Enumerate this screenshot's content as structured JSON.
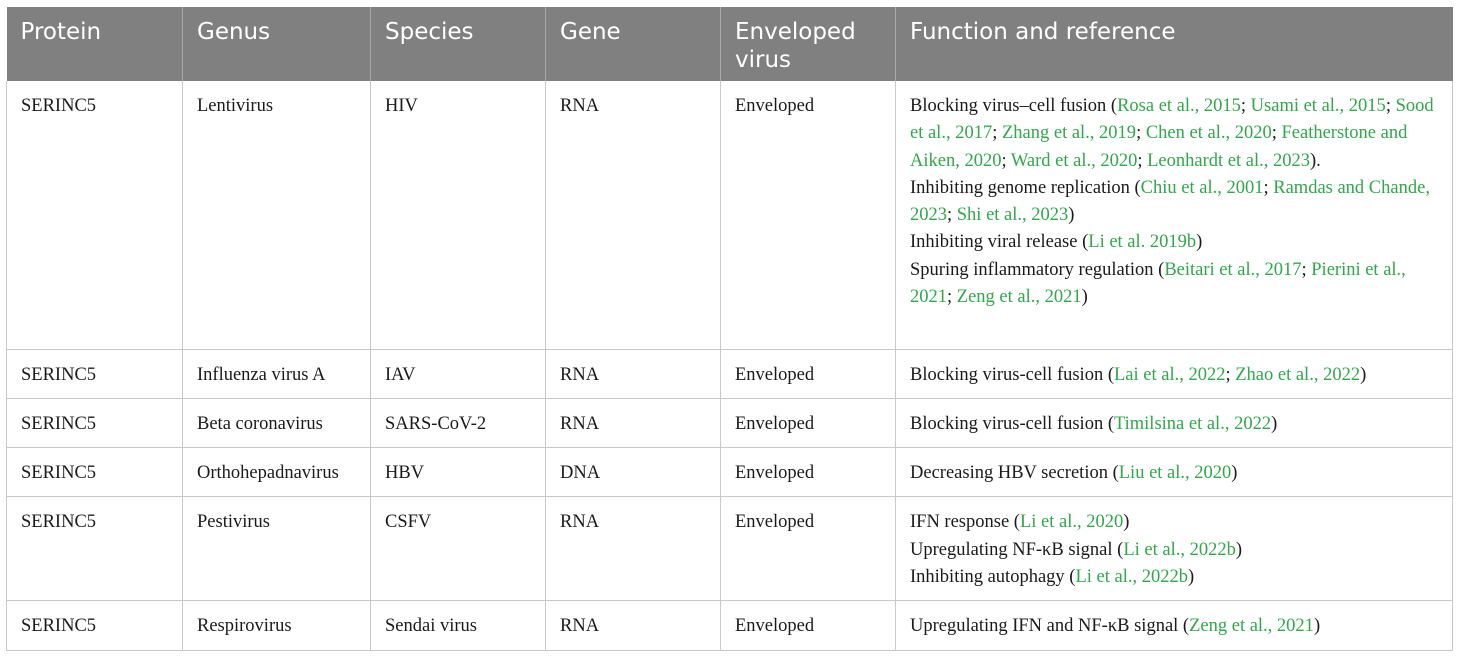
{
  "headers": [
    "Protein",
    "Genus",
    "Species",
    "Gene",
    "Enveloped virus",
    "Function and reference"
  ],
  "rows": [
    {
      "protein": "SERINC5",
      "genus": "Lentivirus",
      "species": "HIV",
      "gene": "RNA",
      "enveloped": "Enveloped",
      "function": [
        [
          {
            "t": "Blocking virus–cell fusion ("
          },
          {
            "t": "Rosa et al., 2015",
            "ref": true
          },
          {
            "t": "; "
          },
          {
            "t": "Usami et al., 2015",
            "ref": true
          },
          {
            "t": "; "
          },
          {
            "t": "Sood et al., 2017",
            "ref": true
          },
          {
            "t": "; "
          },
          {
            "t": "Zhang et al., 2019",
            "ref": true
          },
          {
            "t": "; "
          },
          {
            "t": "Chen et al., 2020",
            "ref": true
          },
          {
            "t": "; "
          },
          {
            "t": "Featherstone and Aiken, 2020",
            "ref": true
          },
          {
            "t": "; "
          },
          {
            "t": "Ward et al., 2020",
            "ref": true
          },
          {
            "t": "; "
          },
          {
            "t": "Leonhardt et al., 2023",
            "ref": true
          },
          {
            "t": ")."
          }
        ],
        [
          {
            "t": "Inhibiting genome replication ("
          },
          {
            "t": "Chiu et al., 2001",
            "ref": true
          },
          {
            "t": "; "
          },
          {
            "t": "Ramdas and Chande, 2023",
            "ref": true
          },
          {
            "t": "; "
          },
          {
            "t": "Shi et al., 2023",
            "ref": true
          },
          {
            "t": ")"
          }
        ],
        [
          {
            "t": "Inhibiting viral release ("
          },
          {
            "t": "Li et al. 2019b",
            "ref": true
          },
          {
            "t": ")"
          }
        ],
        [
          {
            "t": "Spuring inflammatory regulation ("
          },
          {
            "t": "Beitari et al., 2017",
            "ref": true
          },
          {
            "t": "; "
          },
          {
            "t": "Pierini et al., 2021",
            "ref": true
          },
          {
            "t": "; "
          },
          {
            "t": "Zeng et al., 2021",
            "ref": true
          },
          {
            "t": ")"
          }
        ]
      ]
    },
    {
      "protein": "SERINC5",
      "genus": "Influenza virus A",
      "species": "IAV",
      "gene": "RNA",
      "enveloped": "Enveloped",
      "function": [
        [
          {
            "t": "Blocking virus-cell fusion ("
          },
          {
            "t": "Lai et al., 2022",
            "ref": true
          },
          {
            "t": "; "
          },
          {
            "t": "Zhao et al., 2022",
            "ref": true
          },
          {
            "t": ")"
          }
        ]
      ]
    },
    {
      "protein": "SERINC5",
      "genus": "Beta coronavirus",
      "species": "SARS-CoV-2",
      "gene": "RNA",
      "enveloped": "Enveloped",
      "function": [
        [
          {
            "t": "Blocking virus-cell fusion ("
          },
          {
            "t": "Timilsina et al., 2022",
            "ref": true
          },
          {
            "t": ")"
          }
        ]
      ]
    },
    {
      "protein": "SERINC5",
      "genus": "Orthohepadnavirus",
      "species": "HBV",
      "gene": "DNA",
      "enveloped": "Enveloped",
      "function": [
        [
          {
            "t": "Decreasing HBV secretion ("
          },
          {
            "t": "Liu et al., 2020",
            "ref": true
          },
          {
            "t": ")"
          }
        ]
      ]
    },
    {
      "protein": "SERINC5",
      "genus": "Pestivirus",
      "species": "CSFV",
      "gene": "RNA",
      "enveloped": "Enveloped",
      "function": [
        [
          {
            "t": "IFN response ("
          },
          {
            "t": "Li et al., 2020",
            "ref": true
          },
          {
            "t": ")"
          }
        ],
        [
          {
            "t": "Upregulating NF-κB signal ("
          },
          {
            "t": "Li et al., 2022b",
            "ref": true
          },
          {
            "t": ")"
          }
        ],
        [
          {
            "t": "Inhibiting autophagy ("
          },
          {
            "t": "Li et al., 2022b",
            "ref": true
          },
          {
            "t": ")"
          }
        ]
      ]
    },
    {
      "protein": "SERINC5",
      "genus": "Respirovirus",
      "species": "Sendai virus",
      "gene": "RNA",
      "enveloped": "Enveloped",
      "function": [
        [
          {
            "t": "Upregulating IFN and NF-κB signal ("
          },
          {
            "t": "Zeng et al., 2021",
            "ref": true
          },
          {
            "t": ")"
          }
        ]
      ]
    }
  ],
  "colors": {
    "header_bg": "#808080",
    "header_text": "#ffffff",
    "reference_link": "#2fa84a",
    "body_text": "#1a1a1a",
    "grid": "#c8c8c8"
  }
}
